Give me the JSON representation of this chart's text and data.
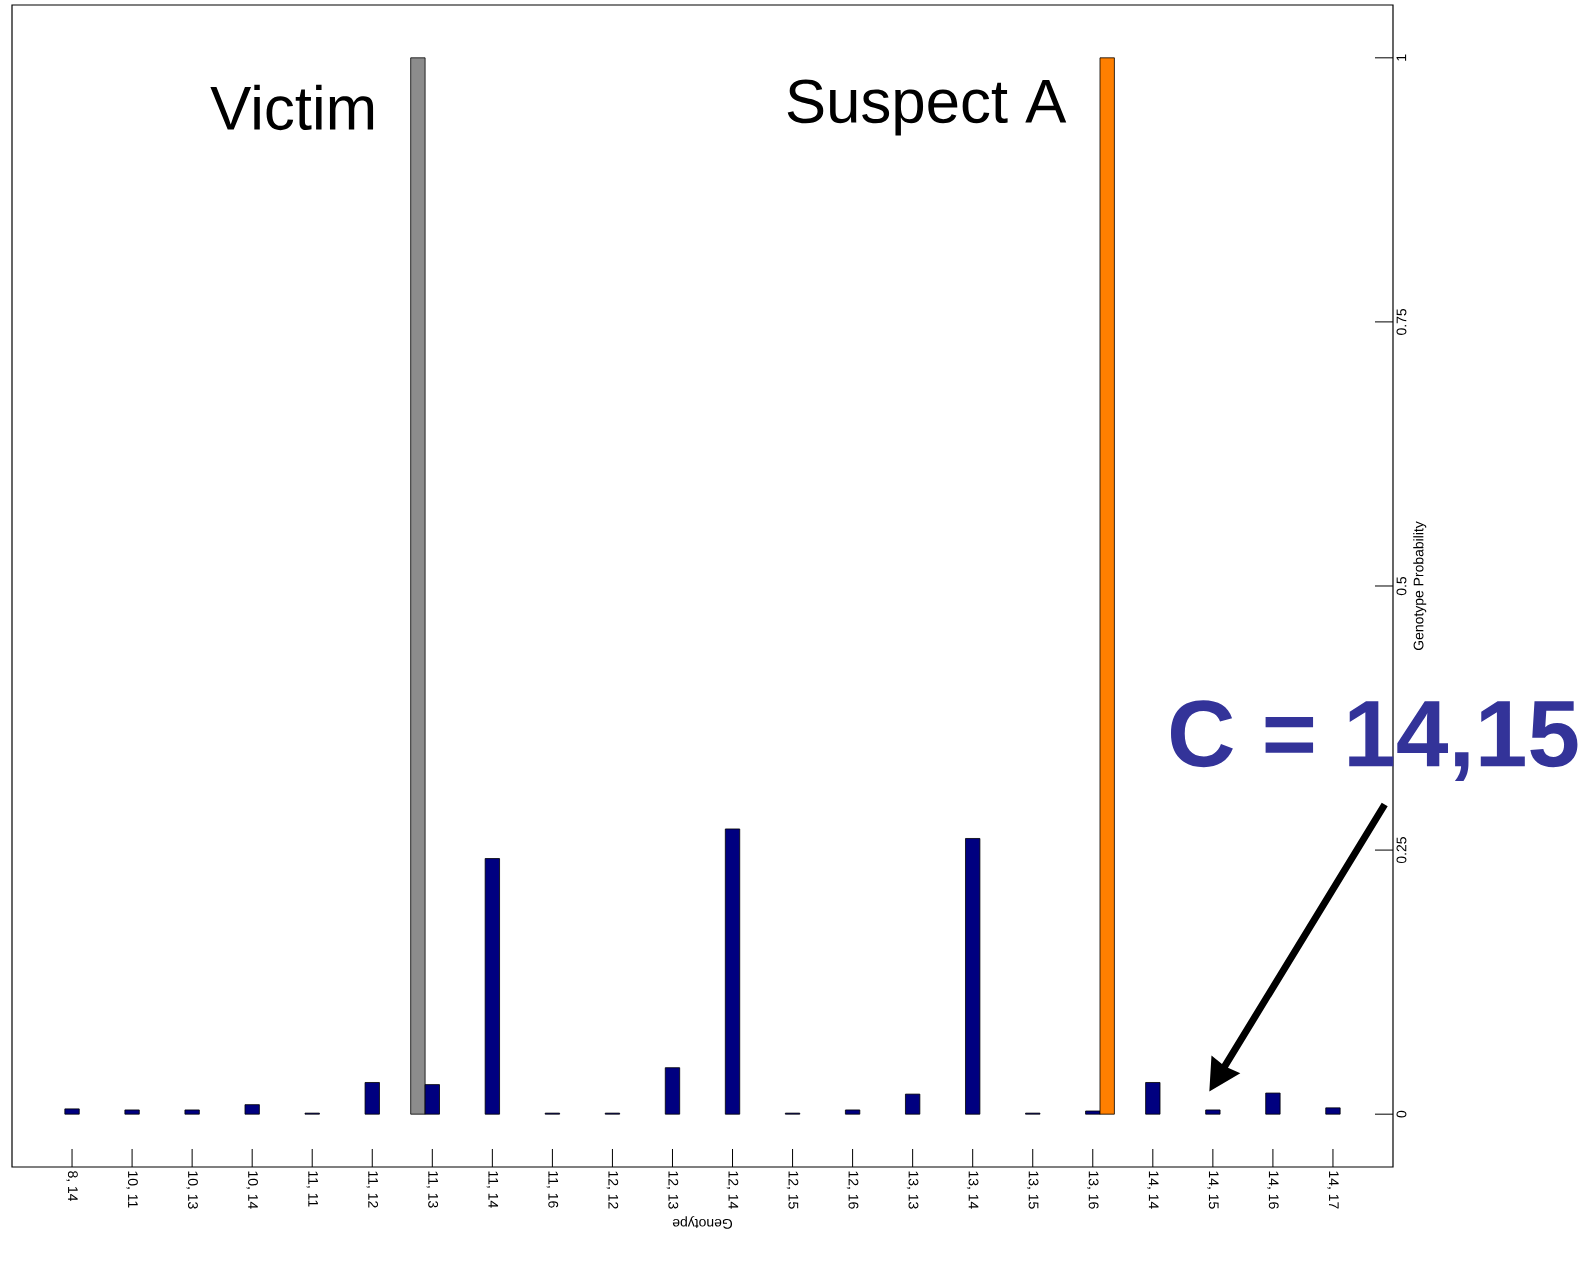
{
  "chart_data": {
    "type": "bar",
    "xlabel": "Genotype",
    "ylabel": "Genotype Probability",
    "categories": [
      "8, 14",
      "10, 11",
      "10, 13",
      "10, 14",
      "11, 11",
      "11, 12",
      "11, 13",
      "11, 14",
      "11, 16",
      "12, 12",
      "12, 13",
      "12, 14",
      "12, 15",
      "12, 16",
      "13, 13",
      "13, 14",
      "13, 15",
      "13, 16",
      "14, 14",
      "14, 15",
      "14, 16",
      "14, 17"
    ],
    "series": [
      {
        "name": "Victim",
        "color": "#8c8c8c",
        "values": [
          null,
          null,
          null,
          null,
          null,
          null,
          1,
          null,
          null,
          null,
          null,
          null,
          null,
          null,
          null,
          null,
          null,
          null,
          null,
          null,
          null,
          null
        ]
      },
      {
        "color": "#000080",
        "values": [
          0.005,
          0.004,
          0.004,
          0.009,
          0.001,
          0.03,
          0.028,
          0.242,
          0.001,
          0.001,
          0.044,
          0.27,
          0.001,
          0.004,
          0.019,
          0.261,
          0.001,
          0.003,
          0.03,
          0.004,
          0.02,
          0.006
        ]
      },
      {
        "name": "Suspect A",
        "color": "#ff7f00",
        "values": [
          null,
          null,
          null,
          null,
          null,
          null,
          null,
          null,
          null,
          null,
          null,
          null,
          null,
          null,
          null,
          null,
          null,
          1,
          null,
          null,
          null,
          null
        ]
      }
    ],
    "ylim": [
      -0.05,
      1.05
    ],
    "yticks": [
      0,
      0.25,
      0.5,
      0.75,
      1
    ],
    "annotations": [
      "C = 14,15"
    ]
  }
}
